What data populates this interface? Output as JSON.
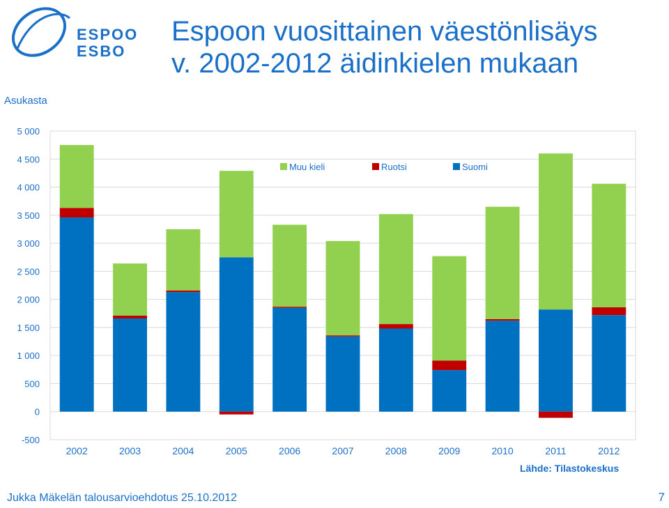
{
  "brand": {
    "logo_line1": "ESPOO",
    "logo_line2": "ESBO",
    "color": "#1a6fc8"
  },
  "title": {
    "line1": "Espoon vuosittainen väestönlisäys",
    "line2": "v. 2002-2012 äidinkielen mukaan"
  },
  "footer": {
    "left": "Jukka Mäkelän talousarvioehdotus 25.10.2012",
    "page_number": "7",
    "source": "Lähde: Tilastokeskus"
  },
  "chart_data": {
    "type": "bar",
    "stacked": true,
    "ylabel": "Asukasta",
    "ylim": [
      -500,
      5000
    ],
    "yticks": [
      -500,
      0,
      500,
      1000,
      1500,
      2000,
      2500,
      3000,
      3500,
      4000,
      4500,
      5000
    ],
    "ytick_labels": [
      "-500",
      "0",
      "500",
      "1 000",
      "1 500",
      "2 000",
      "2 500",
      "3 000",
      "3 500",
      "4 000",
      "4 500",
      "5 000"
    ],
    "grid": true,
    "legend_position": "top-center",
    "categories": [
      "2002",
      "2003",
      "2004",
      "2005",
      "2006",
      "2007",
      "2008",
      "2009",
      "2010",
      "2011",
      "2012"
    ],
    "series": [
      {
        "name": "Suomi",
        "color": "#0070c0",
        "values": [
          3460,
          1660,
          2130,
          2750,
          1850,
          1340,
          1480,
          740,
          1620,
          1820,
          1720
        ]
      },
      {
        "name": "Ruotsi",
        "color": "#c00000",
        "values": [
          170,
          50,
          30,
          -50,
          20,
          20,
          80,
          170,
          30,
          -110,
          140
        ]
      },
      {
        "name": "Muu kieli",
        "color": "#92d050",
        "values": [
          1120,
          930,
          1090,
          1540,
          1460,
          1680,
          1960,
          1860,
          2000,
          2780,
          2200
        ]
      }
    ],
    "legend_order": [
      "Muu kieli",
      "Ruotsi",
      "Suomi"
    ]
  }
}
